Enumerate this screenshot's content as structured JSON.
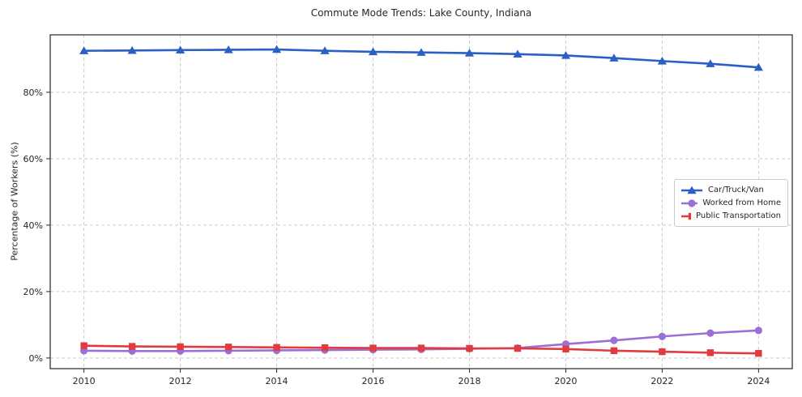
{
  "title": "Commute Mode Trends: Lake County, Indiana",
  "chart_data": {
    "type": "line",
    "title": "Commute Mode Trends: Lake County, Indiana",
    "xlabel": "",
    "ylabel": "Percentage of Workers (%)",
    "x": [
      2010,
      2011,
      2012,
      2013,
      2014,
      2015,
      2016,
      2017,
      2018,
      2019,
      2020,
      2021,
      2022,
      2023,
      2024
    ],
    "series": [
      {
        "name": "Car/Truck/Van",
        "color": "#2a5fc4",
        "marker": "triangle",
        "values": [
          92.5,
          92.6,
          92.7,
          92.8,
          92.9,
          92.5,
          92.2,
          92.0,
          91.8,
          91.5,
          91.1,
          90.3,
          89.4,
          88.6,
          87.5
        ]
      },
      {
        "name": "Worked from Home",
        "color": "#9b6fd6",
        "marker": "circle",
        "values": [
          2.2,
          2.1,
          2.1,
          2.2,
          2.3,
          2.4,
          2.5,
          2.6,
          2.8,
          3.0,
          4.2,
          5.3,
          6.5,
          7.5,
          8.3
        ]
      },
      {
        "name": "Public Transportation",
        "color": "#e23b3f",
        "marker": "square",
        "values": [
          3.7,
          3.5,
          3.4,
          3.3,
          3.2,
          3.1,
          3.0,
          3.0,
          2.9,
          2.9,
          2.7,
          2.2,
          1.9,
          1.6,
          1.4
        ]
      }
    ],
    "xticks": [
      {
        "v": 2010,
        "label": "2010"
      },
      {
        "v": 2012,
        "label": "2012"
      },
      {
        "v": 2014,
        "label": "2014"
      },
      {
        "v": 2016,
        "label": "2016"
      },
      {
        "v": 2018,
        "label": "2018"
      },
      {
        "v": 2020,
        "label": "2020"
      },
      {
        "v": 2022,
        "label": "2022"
      },
      {
        "v": 2024,
        "label": "2024"
      }
    ],
    "yticks": [
      {
        "v": 0,
        "label": "0%"
      },
      {
        "v": 20,
        "label": "20%"
      },
      {
        "v": 40,
        "label": "40%"
      },
      {
        "v": 60,
        "label": "60%"
      },
      {
        "v": 80,
        "label": "80%"
      }
    ],
    "xlim": [
      2009.3,
      2024.7
    ],
    "ylim": [
      -3.2,
      97.3
    ],
    "grid": true,
    "legend_position": "center-right",
    "grid_color": "#cccccc",
    "spine_color": "#262626",
    "tick_label_color": "#262626"
  }
}
